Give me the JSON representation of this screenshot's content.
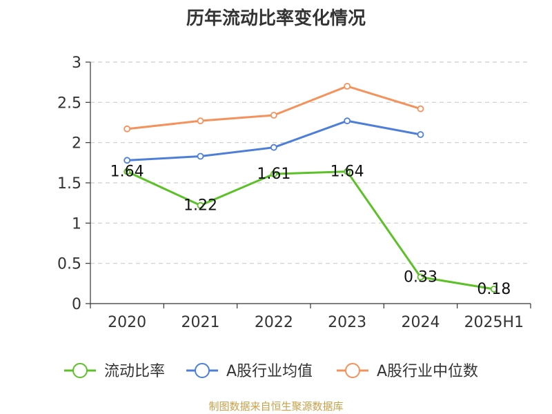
{
  "chart_data": {
    "type": "line",
    "title": "历年流动比率变化情况",
    "xlabel": "",
    "ylabel": "",
    "categories": [
      "2020",
      "2021",
      "2022",
      "2023",
      "2024",
      "2025H1"
    ],
    "ylim": [
      0,
      3
    ],
    "yticks": [
      "0",
      "0.5",
      "1",
      "1.5",
      "2",
      "2.5",
      "3"
    ],
    "ytick_values": [
      0,
      0.5,
      1,
      1.5,
      2,
      2.5,
      3
    ],
    "grid": true,
    "legend_position": "bottom",
    "series": [
      {
        "name": "流动比率",
        "color": "#5cc127",
        "values": [
          1.64,
          1.22,
          1.61,
          1.64,
          0.33,
          0.18
        ],
        "labels": [
          "1.64",
          "1.22",
          "1.61",
          "1.64",
          "0.33",
          "0.18"
        ]
      },
      {
        "name": "A股行业均值",
        "color": "#4d7fd9",
        "values": [
          1.78,
          1.83,
          1.94,
          2.27,
          2.1,
          null
        ]
      },
      {
        "name": "A股行业中位数",
        "color": "#f5915a",
        "values": [
          2.17,
          2.27,
          2.34,
          2.7,
          2.42,
          null
        ]
      }
    ]
  },
  "source_note": "制图数据来自恒生聚源数据库"
}
